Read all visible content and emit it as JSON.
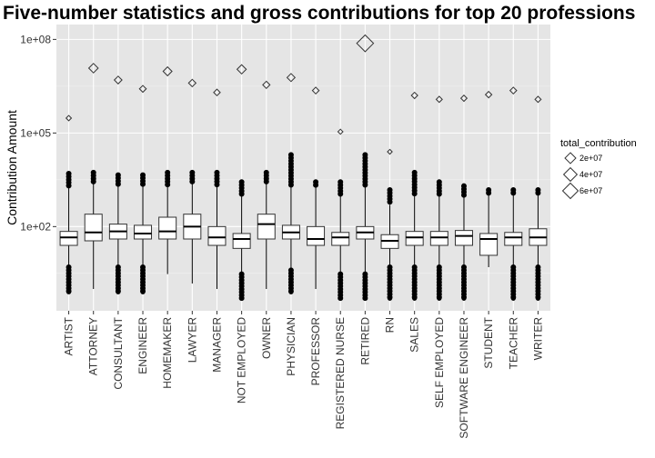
{
  "chart_data": {
    "type": "box",
    "title": "Five-number statistics and gross contributions for top 20 professions",
    "xlabel": "",
    "ylabel": "Contribution Amount",
    "y_scale": "log10",
    "ylim": [
      0.2,
      300000000
    ],
    "y_ticks": [
      {
        "value": 100,
        "label": "1e+02"
      },
      {
        "value": 100000,
        "label": "1e+05"
      },
      {
        "value": 100000000,
        "label": "1e+08"
      }
    ],
    "grid": true,
    "categories": [
      "ARTIST",
      "ATTORNEY",
      "CONSULTANT",
      "ENGINEER",
      "HOMEMAKER",
      "LAWYER",
      "MANAGER",
      "NOT EMPLOYED",
      "OWNER",
      "PHYSICIAN",
      "PROFESSOR",
      "REGISTERED NURSE",
      "RETIRED",
      "RN",
      "SALES",
      "SELF EMPLOYED",
      "SOFTWARE ENGINEER",
      "STUDENT",
      "TEACHER",
      "WRITER"
    ],
    "boxes": [
      {
        "category": "ARTIST",
        "whisker_low": 5,
        "q1": 25,
        "median": 45,
        "q3": 70,
        "whisker_high": 2000,
        "outlier_low": 0.8,
        "outlier_high": 5000
      },
      {
        "category": "ATTORNEY",
        "whisker_low": 1,
        "q1": 35,
        "median": 65,
        "q3": 250,
        "whisker_high": 2700,
        "outlier_low": null,
        "outlier_high": 5400
      },
      {
        "category": "CONSULTANT",
        "whisker_low": 5,
        "q1": 40,
        "median": 70,
        "q3": 120,
        "whisker_high": 2000,
        "outlier_low": 0.8,
        "outlier_high": 4500
      },
      {
        "category": "ENGINEER",
        "whisker_low": 5,
        "q1": 40,
        "median": 60,
        "q3": 110,
        "whisker_high": 2000,
        "outlier_low": 0.8,
        "outlier_high": 4500
      },
      {
        "category": "HOMEMAKER",
        "whisker_low": 3,
        "q1": 40,
        "median": 70,
        "q3": 200,
        "whisker_high": 2000,
        "outlier_low": null,
        "outlier_high": 5400
      },
      {
        "category": "LAWYER",
        "whisker_low": 1.5,
        "q1": 40,
        "median": 100,
        "q3": 250,
        "whisker_high": 2700,
        "outlier_low": null,
        "outlier_high": 5400
      },
      {
        "category": "MANAGER",
        "whisker_low": 1,
        "q1": 25,
        "median": 45,
        "q3": 100,
        "whisker_high": 2000,
        "outlier_low": null,
        "outlier_high": 5400
      },
      {
        "category": "NOT EMPLOYED",
        "whisker_low": 3,
        "q1": 20,
        "median": 40,
        "q3": 60,
        "whisker_high": 1000,
        "outlier_low": 0.5,
        "outlier_high": 2700
      },
      {
        "category": "OWNER",
        "whisker_low": 1,
        "q1": 40,
        "median": 120,
        "q3": 250,
        "whisker_high": 2700,
        "outlier_low": null,
        "outlier_high": 5400
      },
      {
        "category": "PHYSICIAN",
        "whisker_low": 4,
        "q1": 40,
        "median": 65,
        "q3": 110,
        "whisker_high": 2000,
        "outlier_low": 0.8,
        "outlier_high": 20000
      },
      {
        "category": "PROFESSOR",
        "whisker_low": 1,
        "q1": 25,
        "median": 40,
        "q3": 100,
        "whisker_high": 2000,
        "outlier_low": null,
        "outlier_high": 2700
      },
      {
        "category": "REGISTERED NURSE",
        "whisker_low": 3,
        "q1": 25,
        "median": 45,
        "q3": 65,
        "whisker_high": 1000,
        "outlier_low": 0.5,
        "outlier_high": 2700
      },
      {
        "category": "RETIRED",
        "whisker_low": 3,
        "q1": 40,
        "median": 65,
        "q3": 100,
        "whisker_high": 2000,
        "outlier_low": 0.5,
        "outlier_high": 20000
      },
      {
        "category": "RN",
        "whisker_low": 5,
        "q1": 20,
        "median": 35,
        "q3": 55,
        "whisker_high": 500,
        "outlier_low": 0.5,
        "outlier_high": 1500
      },
      {
        "category": "SALES",
        "whisker_low": 5,
        "q1": 25,
        "median": 45,
        "q3": 70,
        "whisker_high": 1000,
        "outlier_low": 0.5,
        "outlier_high": 5400
      },
      {
        "category": "SELF EMPLOYED",
        "whisker_low": 5,
        "q1": 25,
        "median": 45,
        "q3": 70,
        "whisker_high": 1000,
        "outlier_low": 0.5,
        "outlier_high": 2700
      },
      {
        "category": "SOFTWARE ENGINEER",
        "whisker_low": 5,
        "q1": 25,
        "median": 50,
        "q3": 75,
        "whisker_high": 1000,
        "outlier_low": 0.5,
        "outlier_high": 2000
      },
      {
        "category": "STUDENT",
        "whisker_low": 5,
        "q1": 12,
        "median": 40,
        "q3": 60,
        "whisker_high": 1000,
        "outlier_low": null,
        "outlier_high": 1500
      },
      {
        "category": "TEACHER",
        "whisker_low": 5,
        "q1": 25,
        "median": 45,
        "q3": 65,
        "whisker_high": 1000,
        "outlier_low": 0.5,
        "outlier_high": 1500
      },
      {
        "category": "WRITER",
        "whisker_low": 5,
        "q1": 25,
        "median": 45,
        "q3": 85,
        "whisker_high": 1000,
        "outlier_low": 0.5,
        "outlier_high": 1500
      }
    ],
    "series": [
      {
        "name": "total_contribution",
        "mark": "open-diamond",
        "values": [
          300000,
          12000000,
          5000000,
          2600000,
          9500000,
          4000000,
          2000000,
          11000000,
          3500000,
          6000000,
          2300000,
          110000,
          75000000,
          25000,
          1600000,
          1200000,
          1300000,
          1700000,
          2300000,
          1200000
        ]
      }
    ],
    "legend": {
      "title": "total_contribution",
      "position": "right",
      "entries": [
        {
          "label": "2e+07",
          "value": 20000000
        },
        {
          "label": "4e+07",
          "value": 40000000
        },
        {
          "label": "6e+07",
          "value": 60000000
        }
      ]
    }
  }
}
